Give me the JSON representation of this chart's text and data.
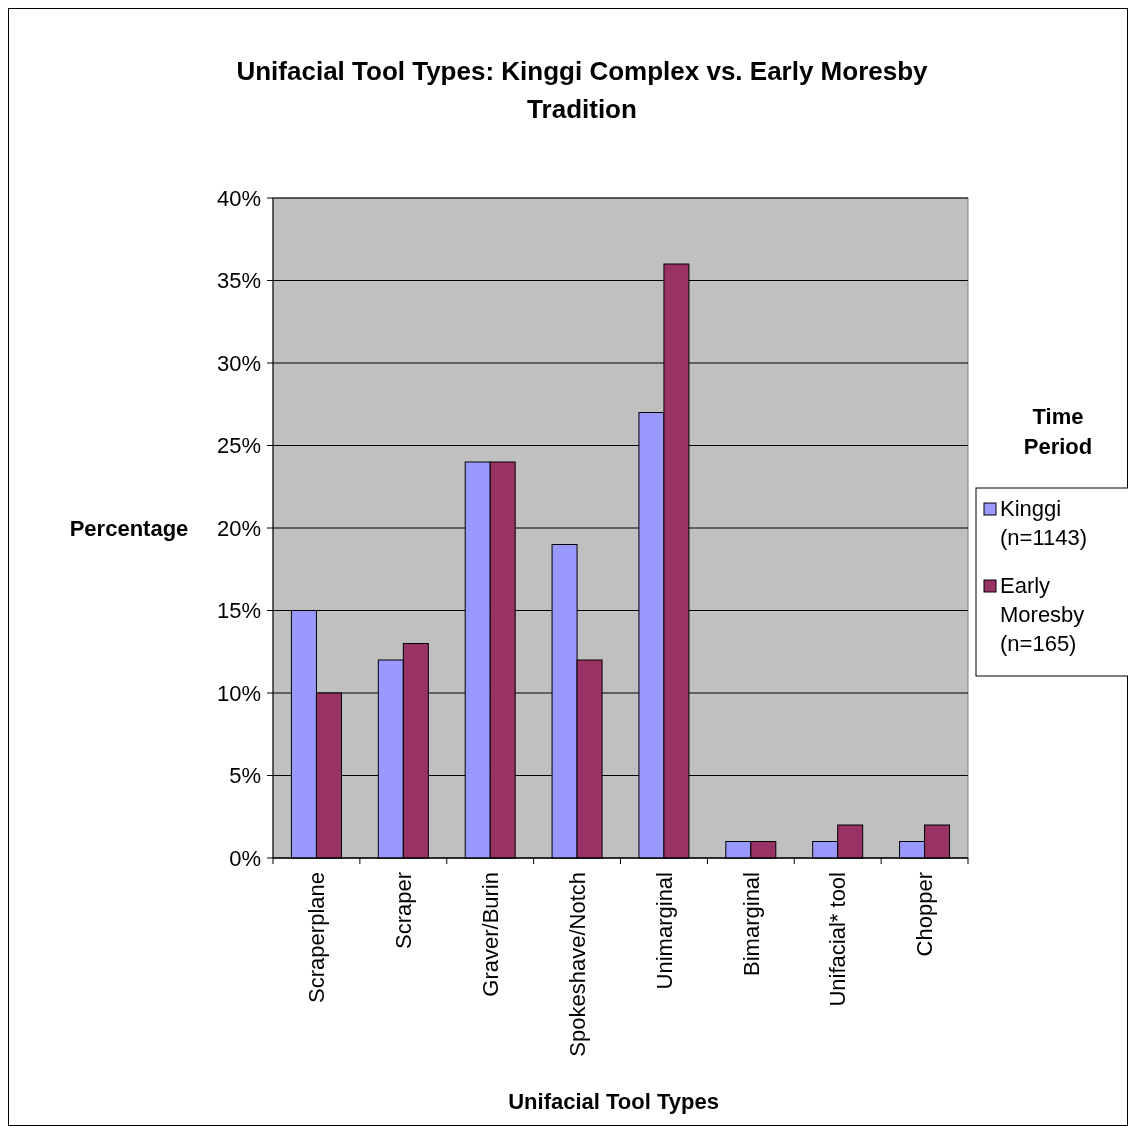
{
  "chart_data": {
    "type": "bar",
    "title": "Unifacial Tool Types: Kinggi Complex vs. Early Moresby Tradition",
    "xlabel": "Unifacial Tool Types",
    "ylabel": "Percentage",
    "legend_title": "Time Period",
    "categories": [
      "Scraperplane",
      "Scraper",
      "Graver/Burin",
      "Spokeshave/Notch",
      "Unimarginal",
      "Bimarginal",
      "Unifacial* tool",
      "Chopper"
    ],
    "series": [
      {
        "name": "Kinggi (n=1143)",
        "color": "#9999ff",
        "values": [
          15,
          12,
          24,
          19,
          27,
          1,
          1,
          1
        ]
      },
      {
        "name": "Early Moresby (n=165)",
        "color": "#993366",
        "values": [
          10,
          13,
          24,
          12,
          36,
          1,
          2,
          2
        ]
      }
    ],
    "ylim": [
      0,
      40
    ],
    "yticks": [
      {
        "value": 0,
        "label": "0%"
      },
      {
        "value": 5,
        "label": "5%"
      },
      {
        "value": 10,
        "label": "10%"
      },
      {
        "value": 15,
        "label": "15%"
      },
      {
        "value": 20,
        "label": "20%"
      },
      {
        "value": 25,
        "label": "25%"
      },
      {
        "value": 30,
        "label": "30%"
      },
      {
        "value": 35,
        "label": "35%"
      },
      {
        "value": 40,
        "label": "40%"
      }
    ],
    "grid": "y",
    "legend": "right"
  }
}
